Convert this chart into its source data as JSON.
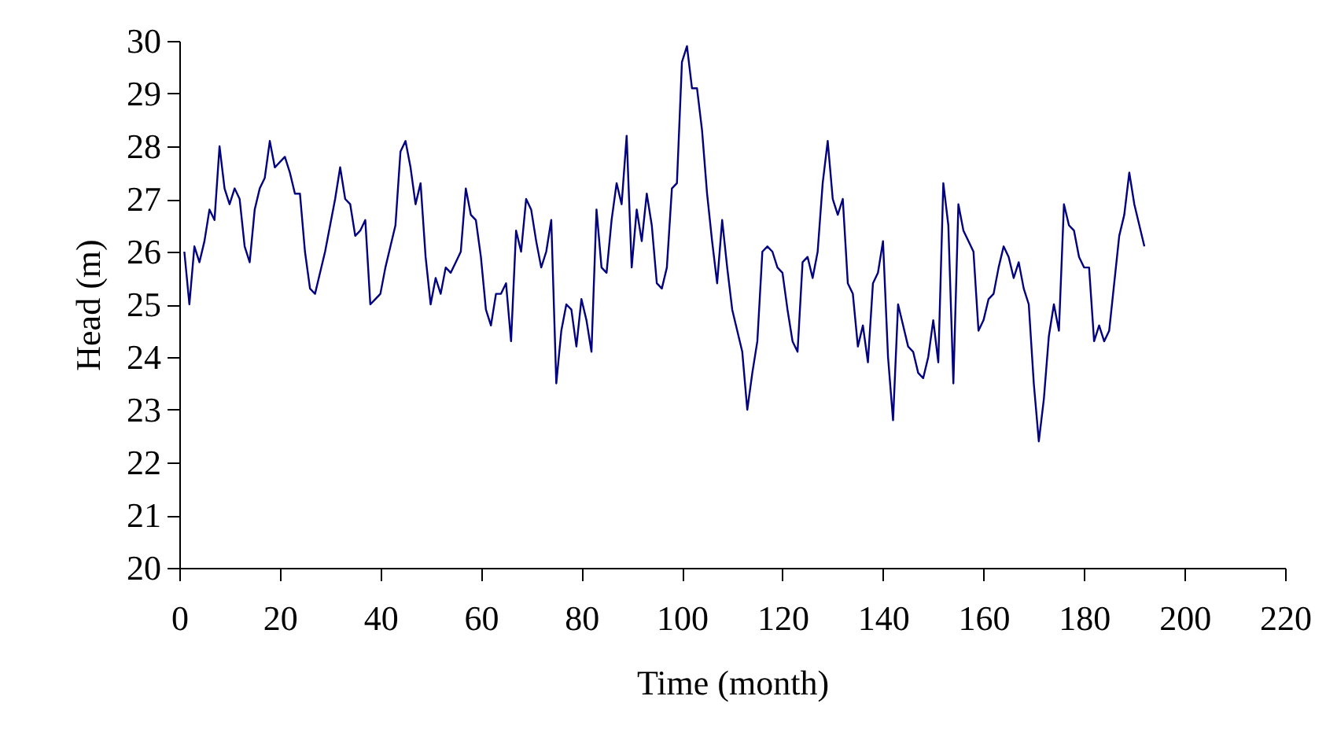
{
  "chart_data": {
    "type": "line",
    "xlabel": "Time (month)",
    "ylabel": "Head (m)",
    "x": [
      1,
      2,
      3,
      4,
      5,
      6,
      7,
      8,
      9,
      10,
      11,
      12,
      13,
      14,
      15,
      16,
      17,
      18,
      19,
      20,
      21,
      22,
      23,
      24,
      25,
      26,
      27,
      28,
      29,
      30,
      31,
      32,
      33,
      34,
      35,
      36,
      37,
      38,
      39,
      40,
      41,
      42,
      43,
      44,
      45,
      46,
      47,
      48,
      49,
      50,
      51,
      52,
      53,
      54,
      55,
      56,
      57,
      58,
      59,
      60,
      61,
      62,
      63,
      64,
      65,
      66,
      67,
      68,
      69,
      70,
      71,
      72,
      73,
      74,
      75,
      76,
      77,
      78,
      79,
      80,
      81,
      82,
      83,
      84,
      85,
      86,
      87,
      88,
      89,
      90,
      91,
      92,
      93,
      94,
      95,
      96,
      97,
      98,
      99,
      100,
      101,
      102,
      103,
      104,
      105,
      106,
      107,
      108,
      109,
      110,
      111,
      112,
      113,
      114,
      115,
      116,
      117,
      118,
      119,
      120,
      121,
      122,
      123,
      124,
      125,
      126,
      127,
      128,
      129,
      130,
      131,
      132,
      133,
      134,
      135,
      136,
      137,
      138,
      139,
      140,
      141,
      142,
      143,
      144,
      145,
      146,
      147,
      148,
      149,
      150,
      151,
      152,
      153,
      154,
      155,
      156,
      157,
      158,
      159,
      160,
      161,
      162,
      163,
      164,
      165,
      166,
      167,
      168,
      169,
      170,
      171,
      172,
      173,
      174,
      175,
      176,
      177,
      178,
      179,
      180,
      181,
      182,
      183,
      184,
      185,
      186,
      187,
      188,
      189,
      190,
      191,
      192
    ],
    "series": [
      {
        "color": "#000080",
        "values": [
          26.0,
          25.0,
          26.1,
          25.8,
          26.2,
          26.8,
          26.6,
          28.0,
          27.2,
          26.9,
          27.2,
          27.0,
          26.1,
          25.8,
          26.8,
          27.2,
          27.4,
          28.1,
          27.6,
          27.7,
          27.8,
          27.5,
          27.1,
          27.1,
          26.0,
          25.3,
          25.2,
          25.6,
          26.0,
          26.5,
          27.0,
          27.6,
          27.0,
          26.9,
          26.3,
          26.4,
          26.6,
          25.0,
          25.1,
          25.2,
          25.7,
          26.1,
          26.5,
          27.9,
          28.1,
          27.6,
          26.9,
          27.3,
          25.9,
          25.0,
          25.5,
          25.2,
          25.7,
          25.6,
          25.8,
          26.0,
          27.2,
          26.7,
          26.6,
          25.9,
          24.9,
          24.6,
          25.2,
          25.2,
          25.4,
          24.3,
          26.4,
          26.0,
          27.0,
          26.8,
          26.2,
          25.7,
          26.0,
          26.6,
          23.5,
          24.5,
          25.0,
          24.9,
          24.2,
          25.1,
          24.7,
          24.1,
          26.8,
          25.7,
          25.6,
          26.6,
          27.3,
          26.9,
          28.2,
          25.7,
          26.8,
          26.2,
          27.1,
          26.5,
          25.4,
          25.3,
          25.7,
          27.2,
          27.3,
          29.6,
          29.9,
          29.1,
          29.1,
          28.3,
          27.1,
          26.2,
          25.4,
          26.6,
          25.7,
          24.9,
          24.5,
          24.1,
          23.0,
          23.7,
          24.3,
          26.0,
          26.1,
          26.0,
          25.7,
          25.6,
          24.9,
          24.3,
          24.1,
          25.8,
          25.9,
          25.5,
          26.0,
          27.3,
          28.1,
          27.0,
          26.7,
          27.0,
          25.4,
          25.2,
          24.2,
          24.6,
          23.9,
          25.4,
          25.6,
          26.2,
          24.0,
          22.8,
          25.0,
          24.6,
          24.2,
          24.1,
          23.7,
          23.6,
          24.0,
          24.7,
          23.9,
          27.3,
          26.5,
          23.5,
          26.9,
          26.4,
          26.2,
          26.0,
          24.5,
          24.7,
          25.1,
          25.2,
          25.7,
          26.1,
          25.9,
          25.5,
          25.8,
          25.3,
          25.0,
          23.5,
          22.4,
          23.2,
          24.4,
          25.0,
          24.5,
          26.9,
          26.5,
          26.4,
          25.9,
          25.7,
          25.7,
          24.3,
          24.6,
          24.3,
          24.5,
          25.4,
          26.3,
          26.7,
          27.5,
          26.9,
          26.5,
          26.1
        ]
      }
    ],
    "xlim": [
      0,
      220
    ],
    "xticks": [
      0,
      20,
      40,
      60,
      80,
      100,
      120,
      140,
      160,
      180,
      200,
      220
    ],
    "ylim": [
      20,
      30
    ],
    "yticks": [
      20,
      21,
      22,
      23,
      24,
      25,
      26,
      27,
      28,
      29,
      30
    ],
    "grid": false,
    "marker": "none",
    "line_style": "solid"
  }
}
